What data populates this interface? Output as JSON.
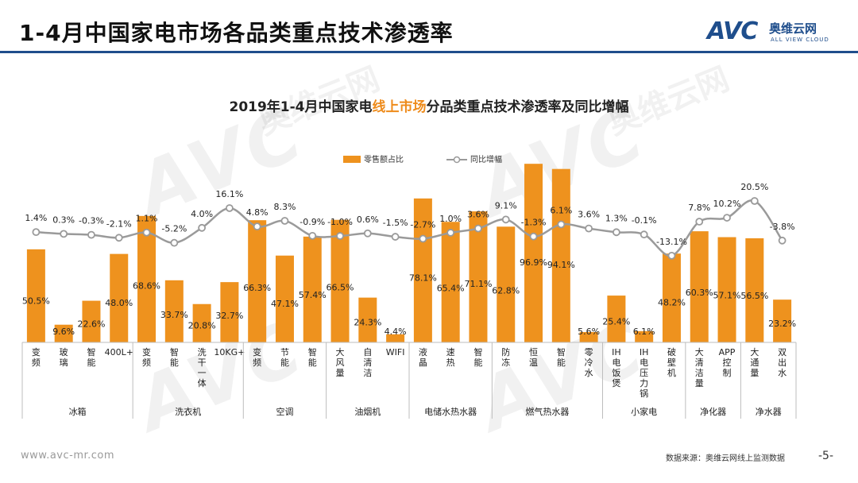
{
  "page": {
    "title": "1-4月中国家电市场各品类重点技术渗透率",
    "logo_mark": "AVC",
    "logo_cn": "奥维云网",
    "logo_en": "ALL VIEW CLOUD",
    "footer_url": "www.avc-mr.com",
    "footer_source": "数据来源：奥维云网线上监测数据",
    "page_number": "-5-",
    "watermark_text": "AVC",
    "watermark_cn": "奥维云网",
    "accent_color": "#1f4e8c"
  },
  "chart_data": {
    "type": "bar",
    "title_parts": [
      "2019年1-4月中国家电",
      "线上市场",
      "分品类重点技术渗透率及同比增幅"
    ],
    "title_highlight_color": "#ee8b1b",
    "legend": [
      "零售额占比",
      "同比增幅"
    ],
    "bar_color": "#ee921e",
    "line_color": "#9a9a9a",
    "categories": [
      "变频",
      "玻璃",
      "智能",
      "400L+",
      "变频",
      "智能",
      "洗干一体",
      "10KG+",
      "变频",
      "节能",
      "智能",
      "大风量",
      "自清洁",
      "WIFI",
      "液晶",
      "速热",
      "智能",
      "防冻",
      "恒温",
      "智能",
      "零冷水",
      "IH电饭煲",
      "IH电压力锅",
      "破壁机",
      "大清洁量",
      "APP控制",
      "大通量",
      "双出水"
    ],
    "groups": [
      {
        "name": "冰箱",
        "count": 4
      },
      {
        "name": "洗衣机",
        "count": 4
      },
      {
        "name": "空调",
        "count": 3
      },
      {
        "name": "油烟机",
        "count": 3
      },
      {
        "name": "电储水热水器",
        "count": 3
      },
      {
        "name": "燃气热水器",
        "count": 4
      },
      {
        "name": "小家电",
        "count": 3
      },
      {
        "name": "净化器",
        "count": 2
      },
      {
        "name": "净水器",
        "count": 2
      }
    ],
    "series": [
      {
        "name": "零售额占比",
        "unit": "%",
        "values": [
          50.5,
          9.6,
          22.6,
          48.0,
          68.6,
          33.7,
          20.8,
          32.7,
          66.3,
          47.1,
          57.4,
          66.5,
          24.3,
          4.4,
          78.1,
          65.4,
          71.1,
          62.8,
          96.9,
          94.1,
          5.6,
          25.4,
          6.1,
          48.2,
          60.3,
          57.1,
          56.5,
          23.2
        ]
      },
      {
        "name": "同比增幅",
        "unit": "%",
        "values": [
          1.4,
          0.3,
          -0.3,
          -2.1,
          1.1,
          -5.2,
          4.0,
          16.1,
          4.8,
          8.3,
          -0.9,
          -1.0,
          0.6,
          -1.5,
          -2.7,
          1.0,
          3.6,
          9.1,
          -1.3,
          6.1,
          3.6,
          1.3,
          -0.1,
          -13.1,
          7.8,
          10.2,
          20.5,
          -3.8
        ]
      }
    ],
    "bar_labels": [
      "50.5%",
      "9.6%",
      "22.6%",
      "48.0%",
      "68.6%",
      "33.7%",
      "20.8%",
      "32.7%",
      "66.3%",
      "47.1%",
      "57.4%",
      "66.5%",
      "24.3%",
      "4.4%",
      "78.1%",
      "65.4%",
      "71.1%",
      "62.8%",
      "96.9%",
      "94.1%",
      "5.6%",
      "25.4%",
      "6.1%",
      "48.2%",
      "60.3%",
      "57.1%",
      "56.5%",
      "23.2%"
    ],
    "line_labels": [
      "1.4%",
      "0.3%",
      "-0.3%",
      "-2.1%",
      "1.1%",
      "-5.2%",
      "4.0%",
      "16.1%",
      "4.8%",
      "8.3%",
      "-0.9%",
      "-1.0%",
      "0.6%",
      "-1.5%",
      "-2.7%",
      "1.0%",
      "3.6%",
      "9.1%",
      "-1.3%",
      "6.1%",
      "3.6%",
      "1.3%",
      "-0.1%",
      "-13.1%",
      "7.8%",
      "10.2%",
      "20.5%",
      "-3.8%"
    ],
    "ylim_bars": [
      0,
      100
    ],
    "ylim_line": [
      -40,
      40
    ]
  }
}
